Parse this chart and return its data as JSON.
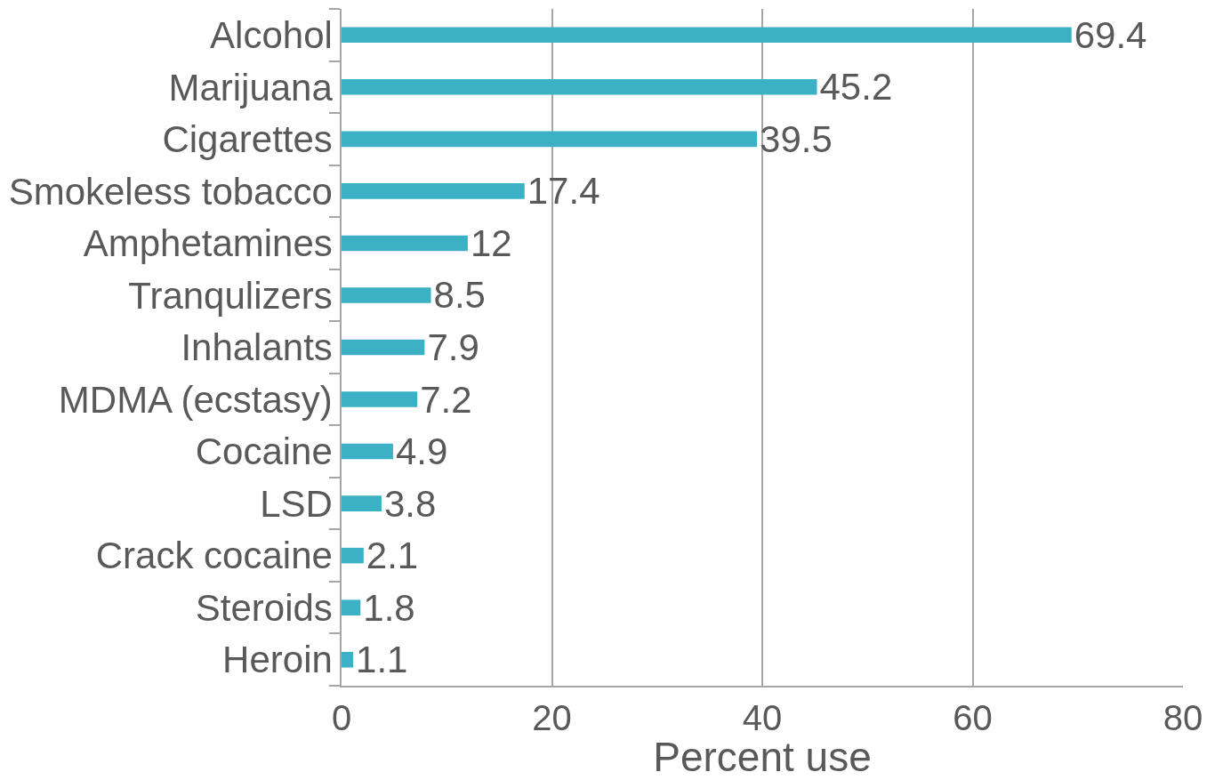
{
  "chart_data": {
    "type": "bar",
    "orientation": "horizontal",
    "xlabel": "Percent use",
    "categories": [
      "Alcohol",
      "Marijuana",
      "Cigarettes",
      "Smokeless tobacco",
      "Amphetamines",
      "Tranqulizers",
      "Inhalants",
      "MDMA (ecstasy)",
      "Cocaine",
      "LSD",
      "Crack cocaine",
      "Steroids",
      "Heroin"
    ],
    "values": [
      69.4,
      45.2,
      39.5,
      17.4,
      12,
      8.5,
      7.9,
      7.2,
      4.9,
      3.8,
      2.1,
      1.8,
      1.1
    ],
    "color": "#3cb1c5",
    "xlim": [
      0,
      80
    ],
    "xticks": [
      0,
      20,
      40,
      60,
      80
    ],
    "grid": "x",
    "data_labels": true
  }
}
